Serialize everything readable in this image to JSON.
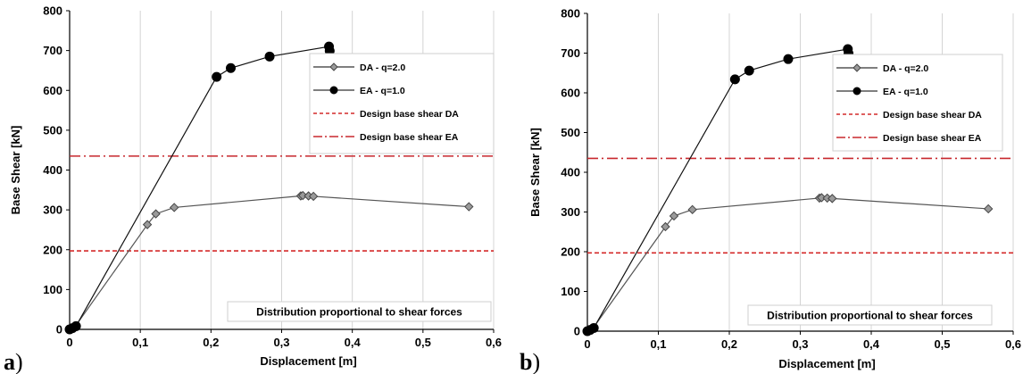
{
  "chart_data": [
    {
      "panel": "a",
      "type": "line",
      "xlabel": "Displacement [m]",
      "ylabel": "Base Shear [kN]",
      "xlim": [
        0,
        0.6
      ],
      "ylim": [
        0,
        800
      ],
      "xticks": [
        "0",
        "0,1",
        "0,2",
        "0,3",
        "0,4",
        "0,5",
        "0,6"
      ],
      "yticks": [
        "0",
        "100",
        "200",
        "300",
        "400",
        "500",
        "600",
        "700",
        "800"
      ],
      "grid": "vertical",
      "legend_position": "upper-right",
      "annotation": "Distribution proportional to shear forces",
      "series": [
        {
          "name": "DA - q=2.0",
          "marker": "diamond",
          "x": [
            0,
            0.003,
            0.007,
            0.11,
            0.122,
            0.148,
            0.327,
            0.33,
            0.338,
            0.345,
            0.565
          ],
          "y": [
            0,
            2,
            5,
            263,
            290,
            306,
            335,
            336,
            335,
            334,
            308
          ]
        },
        {
          "name": "EA - q=1.0",
          "marker": "circle",
          "x": [
            0,
            0.004,
            0.009,
            0.208,
            0.228,
            0.283,
            0.367,
            0.368
          ],
          "y": [
            0,
            3,
            8,
            634,
            656,
            685,
            710,
            699
          ]
        }
      ],
      "reference_lines": [
        {
          "name": "Design base shear DA",
          "y": 197,
          "style": "dashed",
          "color": "#d42a2a"
        },
        {
          "name": "Design base shear EA",
          "y": 435,
          "style": "dash-dot",
          "color": "#c8282e"
        }
      ]
    },
    {
      "panel": "b",
      "type": "line",
      "xlabel": "Displacement [m]",
      "ylabel": "Base Shear [kN]",
      "xlim": [
        0,
        0.6
      ],
      "ylim": [
        0,
        800
      ],
      "xticks": [
        "0",
        "0,1",
        "0,2",
        "0,3",
        "0,4",
        "0,5",
        "0,6"
      ],
      "yticks": [
        "0",
        "100",
        "200",
        "300",
        "400",
        "500",
        "600",
        "700",
        "800"
      ],
      "grid": "vertical",
      "legend_position": "upper-right",
      "annotation": "Distribution proportional to shear forces",
      "series": [
        {
          "name": "DA - q=2.0",
          "marker": "diamond",
          "x": [
            0,
            0.003,
            0.007,
            0.11,
            0.122,
            0.148,
            0.327,
            0.33,
            0.338,
            0.345,
            0.565
          ],
          "y": [
            0,
            2,
            5,
            263,
            290,
            306,
            335,
            336,
            335,
            334,
            308
          ]
        },
        {
          "name": "EA - q=1.0",
          "marker": "circle",
          "x": [
            0,
            0.004,
            0.009,
            0.208,
            0.228,
            0.283,
            0.367,
            0.368
          ],
          "y": [
            0,
            3,
            8,
            634,
            656,
            685,
            710,
            699
          ]
        }
      ],
      "reference_lines": [
        {
          "name": "Design base shear DA",
          "y": 197,
          "style": "dashed",
          "color": "#d42a2a"
        },
        {
          "name": "Design base shear EA",
          "y": 435,
          "style": "dash-dot",
          "color": "#c8282e"
        }
      ]
    }
  ],
  "panel_labels": [
    "a",
    "b"
  ],
  "panel_parens": [
    ")",
    ")"
  ]
}
